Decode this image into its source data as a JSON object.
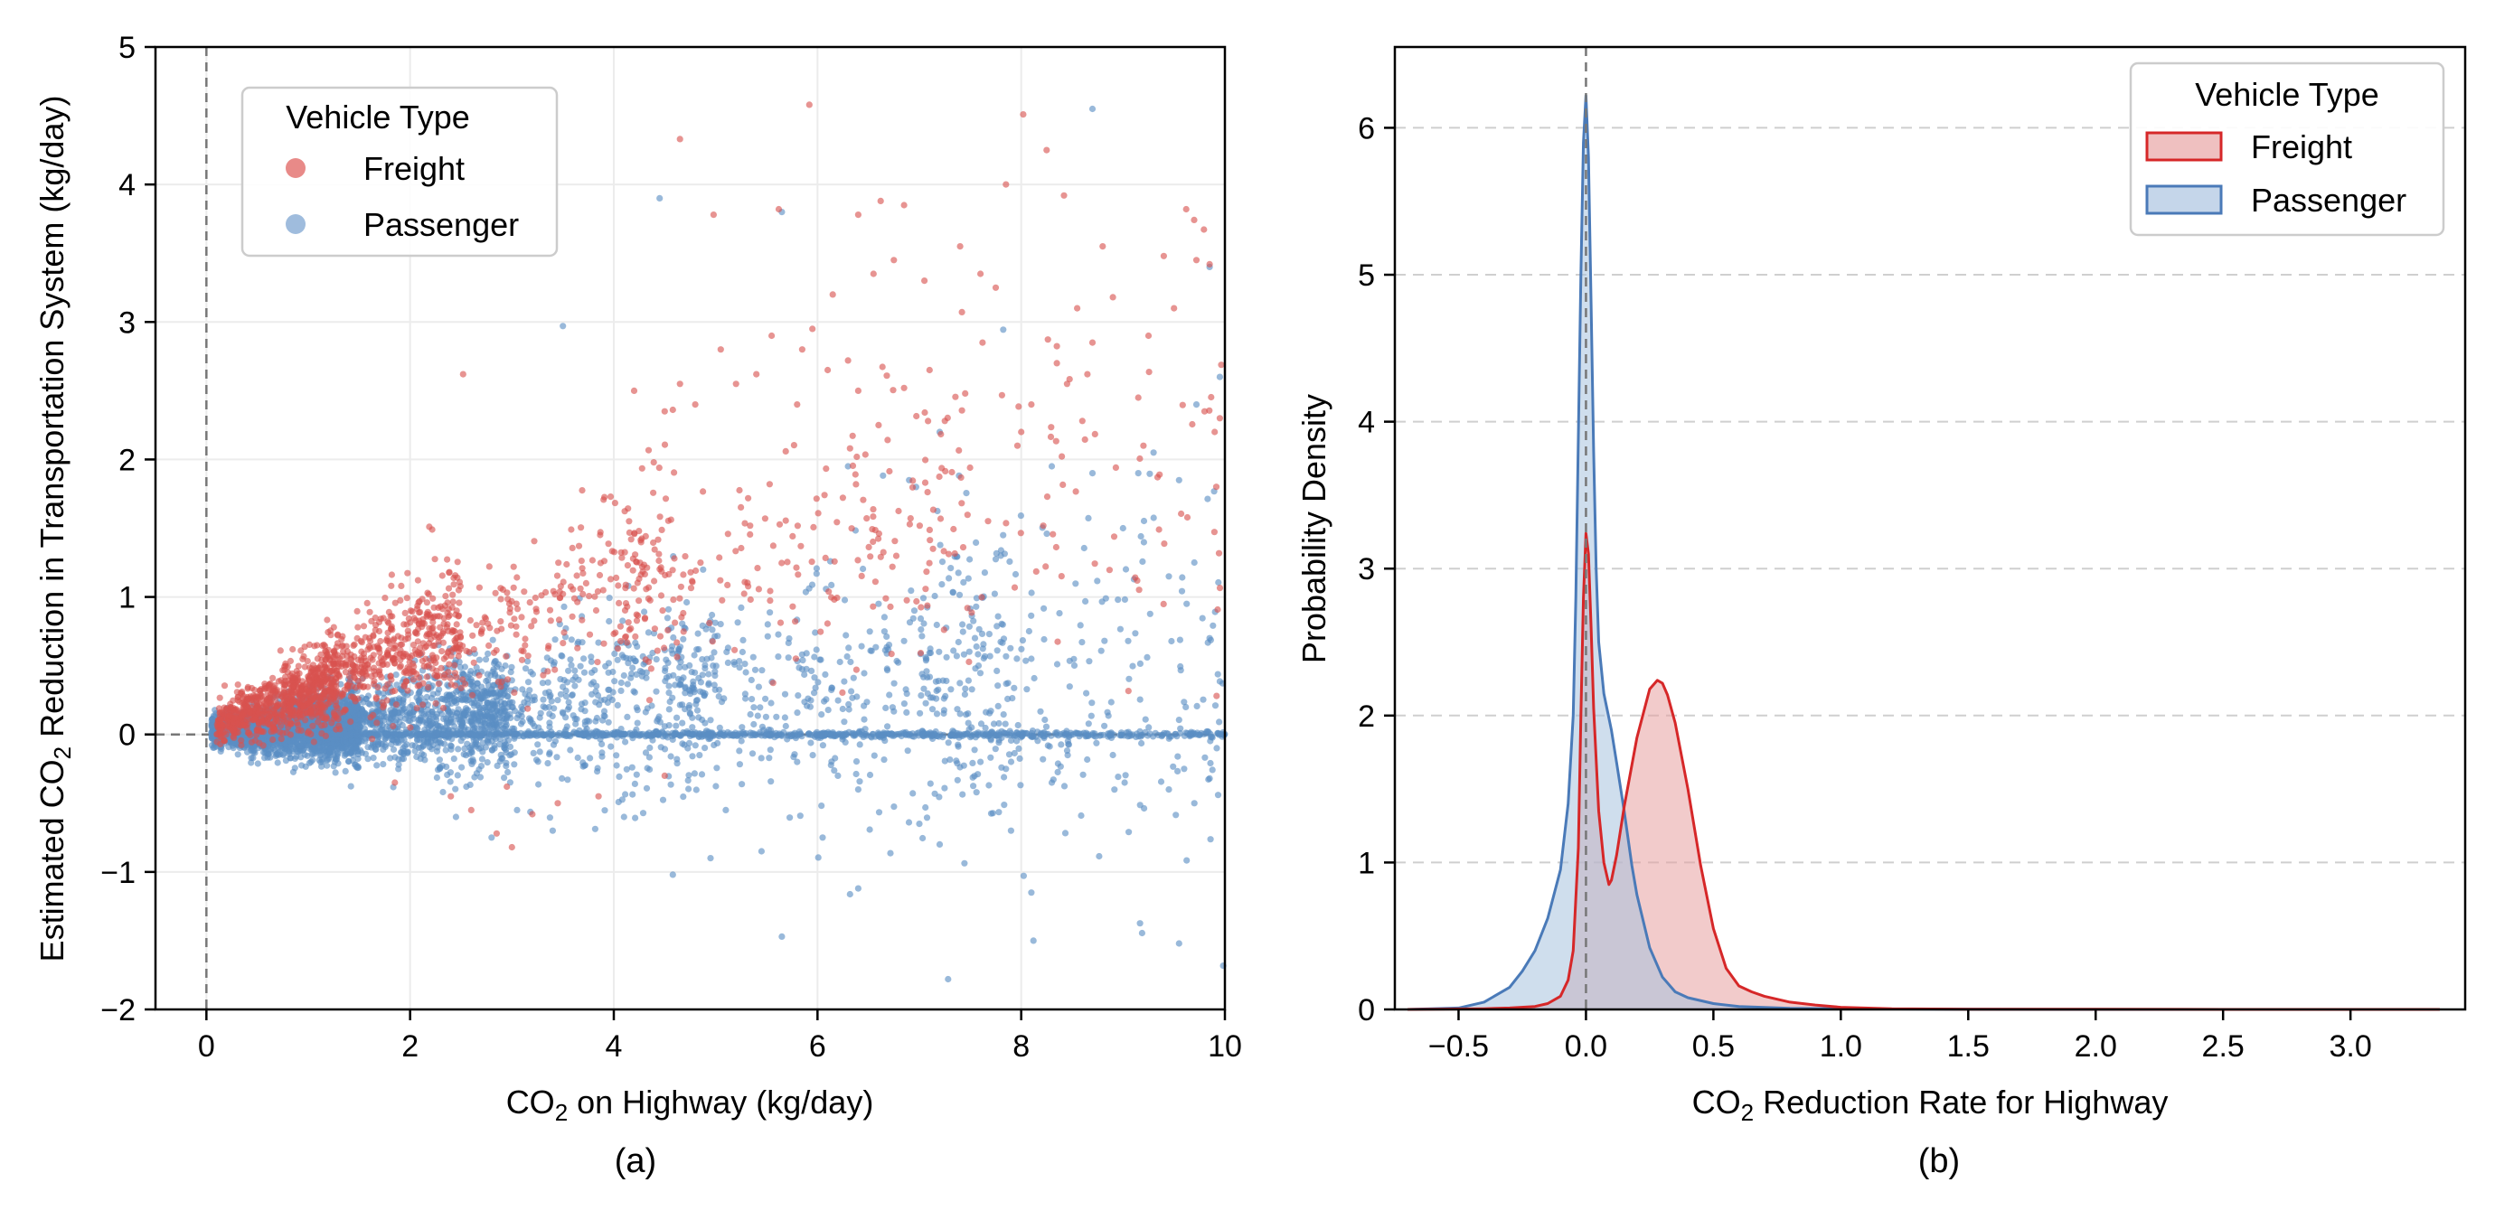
{
  "figure": {
    "panel_a_label": "(a)",
    "panel_b_label": "(b)"
  },
  "chart_data": [
    {
      "type": "scatter",
      "panel": "(a)",
      "xlabel_prefix": "CO",
      "xlabel_sub": "2",
      "xlabel_suffix": " on Highway (kg/day)",
      "ylabel_prefix": "Estimated CO",
      "ylabel_sub": "2",
      "ylabel_suffix": " Reduction in Transportation System (kg/day)",
      "xlim": [
        -0.5,
        10
      ],
      "ylim": [
        -2,
        5
      ],
      "xticks": [
        0,
        2,
        4,
        6,
        8,
        10
      ],
      "xtick_labels": [
        "0",
        "2",
        "4",
        "6",
        "8",
        "10"
      ],
      "yticks": [
        -2,
        -1,
        0,
        1,
        2,
        3,
        4,
        5
      ],
      "ytick_labels": [
        "−2",
        "−1",
        "0",
        "1",
        "2",
        "3",
        "4",
        "5"
      ],
      "grid": true,
      "reference_lines": {
        "x": 0,
        "y": 0
      },
      "legend": {
        "title": "Vehicle Type",
        "placement": "upper-left",
        "entries": [
          "Freight",
          "Passenger"
        ]
      },
      "series": [
        {
          "name": "Freight",
          "color": "#d9534f",
          "points": [
            [
              4.65,
              4.33
            ],
            [
              5.92,
              4.58
            ],
            [
              8.02,
              4.51
            ],
            [
              8.25,
              4.25
            ],
            [
              8.42,
              3.92
            ],
            [
              7.85,
              4.0
            ],
            [
              6.85,
              3.85
            ],
            [
              7.05,
              3.3
            ],
            [
              7.4,
              3.55
            ],
            [
              6.4,
              3.78
            ],
            [
              6.62,
              3.88
            ],
            [
              4.98,
              3.78
            ],
            [
              5.62,
              3.82
            ],
            [
              6.15,
              3.2
            ],
            [
              6.55,
              3.35
            ],
            [
              6.75,
              3.45
            ],
            [
              7.6,
              3.35
            ],
            [
              8.55,
              3.1
            ],
            [
              8.7,
              2.85
            ],
            [
              9.25,
              2.9
            ],
            [
              9.62,
              3.82
            ],
            [
              9.72,
              3.45
            ],
            [
              9.85,
              3.42
            ],
            [
              9.8,
              2.35
            ],
            [
              8.8,
              3.55
            ],
            [
              7.75,
              3.25
            ],
            [
              8.9,
              3.18
            ],
            [
              9.4,
              3.48
            ],
            [
              9.5,
              3.1
            ],
            [
              2.52,
              2.62
            ],
            [
              5.05,
              2.8
            ],
            [
              5.4,
              2.62
            ],
            [
              5.55,
              2.9
            ],
            [
              5.95,
              2.95
            ],
            [
              6.1,
              2.65
            ],
            [
              5.85,
              2.8
            ],
            [
              6.3,
              2.72
            ],
            [
              6.85,
              2.52
            ],
            [
              7.1,
              2.65
            ],
            [
              7.45,
              2.48
            ],
            [
              7.62,
              2.85
            ],
            [
              8.35,
              2.7
            ],
            [
              8.1,
              2.4
            ],
            [
              8.65,
              2.62
            ],
            [
              9.15,
              2.45
            ],
            [
              6.6,
              2.25
            ],
            [
              7.25,
              2.28
            ],
            [
              8.45,
              2.55
            ],
            [
              9.95,
              2.3
            ],
            [
              9.9,
              2.2
            ],
            [
              4.2,
              2.5
            ],
            [
              4.65,
              2.55
            ],
            [
              4.8,
              2.4
            ],
            [
              4.5,
              2.35
            ],
            [
              5.2,
              2.55
            ],
            [
              5.8,
              2.4
            ],
            [
              6.4,
              2.5
            ],
            [
              8.0,
              2.2
            ],
            [
              8.6,
              2.28
            ],
            [
              9.2,
              2.1
            ],
            [
              3.0,
              -0.82
            ],
            [
              2.85,
              -0.72
            ],
            [
              3.2,
              -0.58
            ],
            [
              3.45,
              -0.5
            ],
            [
              3.85,
              -0.45
            ],
            [
              2.4,
              -0.45
            ],
            [
              2.6,
              -0.55
            ],
            [
              2.95,
              -0.38
            ],
            [
              1.85,
              -0.35
            ],
            [
              4.5,
              -0.3
            ]
          ],
          "clusters": [
            {
              "count": 650,
              "x_range": [
                0.1,
                1.3
              ],
              "y_fit": [
                0.08,
                0.25
              ],
              "y_spread": 0.18
            },
            {
              "count": 550,
              "x_range": [
                0.8,
                2.5
              ],
              "y_fit": [
                0.25,
                0.32
              ],
              "y_spread": 0.28
            },
            {
              "count": 240,
              "x_range": [
                2.0,
                4.6
              ],
              "y_fit": [
                0.6,
                0.26
              ],
              "y_spread": 0.42
            },
            {
              "count": 170,
              "x_range": [
                4.0,
                7.5
              ],
              "y_fit": [
                1.0,
                0.2
              ],
              "y_spread": 0.65
            },
            {
              "count": 80,
              "x_range": [
                6.5,
                10.0
              ],
              "y_fit": [
                1.5,
                0.12
              ],
              "y_spread": 0.85
            }
          ]
        },
        {
          "name": "Passenger",
          "color": "#5b8ec4",
          "points": [
            [
              8.7,
              4.55
            ],
            [
              5.65,
              3.8
            ],
            [
              4.45,
              3.9
            ],
            [
              3.5,
              2.97
            ],
            [
              9.85,
              3.4
            ],
            [
              9.95,
              2.6
            ],
            [
              9.72,
              2.4
            ],
            [
              9.15,
              1.9
            ],
            [
              9.55,
              1.85
            ],
            [
              9.7,
              1.25
            ],
            [
              9.85,
              0.7
            ],
            [
              9.45,
              1.15
            ],
            [
              9.0,
              1.5
            ],
            [
              9.05,
              0.68
            ],
            [
              8.95,
              0.98
            ],
            [
              8.1,
              0.55
            ],
            [
              7.55,
              0.48
            ],
            [
              7.4,
              0.15
            ],
            [
              7.6,
              -0.2
            ],
            [
              7.85,
              -0.25
            ],
            [
              8.3,
              -0.35
            ],
            [
              8.9,
              -0.15
            ],
            [
              9.45,
              -0.4
            ],
            [
              9.7,
              -0.5
            ],
            [
              9.85,
              -0.32
            ],
            [
              9.6,
              -0.25
            ],
            [
              9.92,
              -0.1
            ],
            [
              8.1,
              -1.15
            ],
            [
              8.12,
              -1.5
            ],
            [
              9.55,
              -1.52
            ],
            [
              6.4,
              -1.12
            ],
            [
              5.65,
              -1.47
            ],
            [
              4.58,
              -1.02
            ],
            [
              4.95,
              -0.9
            ],
            [
              5.45,
              -0.85
            ],
            [
              6.05,
              -0.75
            ],
            [
              6.4,
              -0.4
            ],
            [
              7.2,
              -0.8
            ],
            [
              7.0,
              -0.65
            ],
            [
              7.9,
              -0.7
            ],
            [
              5.1,
              -0.55
            ],
            [
              4.1,
              -0.6
            ],
            [
              3.4,
              -0.7
            ],
            [
              2.8,
              -0.75
            ],
            [
              3.05,
              -0.55
            ],
            [
              2.45,
              -0.6
            ],
            [
              6.2,
              -0.3
            ],
            [
              5.8,
              -0.2
            ],
            [
              6.6,
              0.95
            ],
            [
              7.8,
              1.3
            ],
            [
              8.3,
              1.95
            ],
            [
              8.7,
              1.9
            ],
            [
              9.3,
              2.05
            ],
            [
              7.2,
              2.2
            ],
            [
              6.9,
              1.85
            ],
            [
              6.3,
              1.95
            ]
          ],
          "clusters": [
            {
              "count": 2300,
              "x_range": [
                0.05,
                1.5
              ],
              "y_fit": [
                0.02,
                0.04
              ],
              "y_spread": 0.14
            },
            {
              "count": 1000,
              "x_range": [
                1.0,
                3.0
              ],
              "y_fit": [
                0.05,
                0.06
              ],
              "y_spread": 0.24
            },
            {
              "count": 480,
              "x_range": [
                2.5,
                5.0
              ],
              "y_fit": [
                0.15,
                0.06
              ],
              "y_spread": 0.45
            },
            {
              "count": 380,
              "x_range": [
                4.5,
                8.0
              ],
              "y_fit": [
                0.25,
                0.05
              ],
              "y_spread": 0.7
            },
            {
              "count": 220,
              "x_range": [
                7.0,
                10.0
              ],
              "y_fit": [
                0.3,
                0.03
              ],
              "y_spread": 0.85
            },
            {
              "count": 900,
              "x_range": [
                0.2,
                10.0
              ],
              "y_fit": [
                0.0,
                0.0
              ],
              "y_spread": 0.012
            }
          ]
        }
      ]
    },
    {
      "type": "area",
      "panel": "(b)",
      "xlabel_prefix": "CO",
      "xlabel_sub": "2",
      "xlabel_suffix": " Reduction Rate for Highway",
      "ylabel": "Probability Density",
      "xlim": [
        -0.75,
        3.45
      ],
      "ylim": [
        0,
        6.55
      ],
      "xticks": [
        -0.5,
        0.0,
        0.5,
        1.0,
        1.5,
        2.0,
        2.5,
        3.0
      ],
      "xtick_labels": [
        "−0.5",
        "0.0",
        "0.5",
        "1.0",
        "1.5",
        "2.0",
        "2.5",
        "3.0"
      ],
      "yticks": [
        0,
        1,
        2,
        3,
        4,
        5,
        6
      ],
      "ytick_labels": [
        "0",
        "1",
        "2",
        "3",
        "4",
        "5",
        "6"
      ],
      "grid": "horizontal-dashed",
      "reference_lines": {
        "x": 0
      },
      "legend": {
        "title": "Vehicle Type",
        "placement": "upper-right",
        "entries": [
          "Freight",
          "Passenger"
        ]
      },
      "series": [
        {
          "name": "Freight",
          "color": "#d62728",
          "fill": "#e8a0a0",
          "x": [
            -0.7,
            -0.4,
            -0.3,
            -0.2,
            -0.15,
            -0.1,
            -0.07,
            -0.05,
            -0.03,
            -0.02,
            -0.01,
            0.0,
            0.01,
            0.02,
            0.03,
            0.05,
            0.07,
            0.09,
            0.1,
            0.12,
            0.15,
            0.2,
            0.25,
            0.28,
            0.3,
            0.32,
            0.35,
            0.4,
            0.45,
            0.5,
            0.55,
            0.6,
            0.65,
            0.7,
            0.8,
            0.9,
            1.0,
            1.2,
            1.5,
            2.0,
            2.5,
            3.0,
            3.35
          ],
          "y": [
            0,
            0.005,
            0.01,
            0.02,
            0.04,
            0.09,
            0.2,
            0.4,
            1.1,
            2.0,
            2.8,
            3.24,
            3.1,
            2.6,
            2.05,
            1.35,
            1.0,
            0.85,
            0.88,
            1.05,
            1.38,
            1.85,
            2.18,
            2.24,
            2.22,
            2.14,
            1.95,
            1.5,
            0.98,
            0.55,
            0.28,
            0.16,
            0.12,
            0.09,
            0.05,
            0.03,
            0.015,
            0.005,
            0.002,
            0.001,
            0,
            0,
            0
          ]
        },
        {
          "name": "Passenger",
          "color": "#4a7ab8",
          "fill": "#a8c2de",
          "x": [
            -0.7,
            -0.5,
            -0.4,
            -0.3,
            -0.25,
            -0.2,
            -0.15,
            -0.1,
            -0.07,
            -0.05,
            -0.04,
            -0.03,
            -0.02,
            -0.01,
            0.0,
            0.01,
            0.02,
            0.03,
            0.04,
            0.05,
            0.07,
            0.1,
            0.12,
            0.15,
            0.18,
            0.2,
            0.25,
            0.3,
            0.35,
            0.4,
            0.5,
            0.6,
            0.8,
            1.0,
            1.5,
            2.0,
            3.0,
            3.35
          ],
          "y": [
            0,
            0.01,
            0.05,
            0.15,
            0.26,
            0.4,
            0.62,
            0.95,
            1.4,
            2.0,
            2.8,
            3.9,
            5.0,
            5.9,
            6.22,
            5.8,
            4.8,
            3.8,
            3.0,
            2.5,
            2.15,
            1.9,
            1.68,
            1.35,
            0.98,
            0.78,
            0.42,
            0.22,
            0.12,
            0.08,
            0.04,
            0.02,
            0.008,
            0.004,
            0.001,
            0,
            0,
            0
          ]
        }
      ]
    }
  ]
}
